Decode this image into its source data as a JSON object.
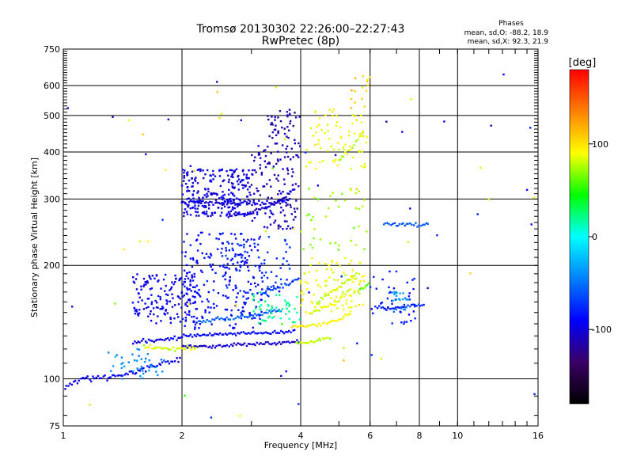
{
  "chart_data": {
    "type": "scatter",
    "title": "Tromsø 20130302 22:26:00–22:27:43",
    "subtitle": "RwPretec (8p)",
    "xlabel": "Frequency [MHz]",
    "ylabel": "Stationary phase Virtual Height [km]",
    "x_scale": "log",
    "y_scale": "log",
    "xlim": [
      1,
      16
    ],
    "ylim": [
      75,
      750
    ],
    "grid": true,
    "x_ticks": [
      1,
      2,
      4,
      6,
      8,
      10,
      16
    ],
    "x_tick_labels": [
      "1",
      "2",
      "4",
      "6",
      "8",
      "10",
      "16"
    ],
    "y_ticks": [
      75,
      100,
      200,
      300,
      400,
      500,
      600,
      750
    ],
    "y_tick_labels": [
      "75",
      "100",
      "200",
      "300",
      "400",
      "500",
      "600",
      "750"
    ],
    "stats": {
      "heading": "Phases",
      "line_o": "mean, sd,O: -88.2, 18.9",
      "line_x": "mean, sd,X:  92.3, 21.9"
    },
    "colorbar": {
      "label": "[deg]",
      "range": [
        -180,
        180
      ],
      "ticks": [
        100,
        0,
        -100
      ],
      "tick_labels": [
        "100",
        "0",
        "-100"
      ],
      "colors": [
        "#000000",
        "#3a0066",
        "#0000ff",
        "#0080ff",
        "#00ffff",
        "#00ff00",
        "#ffff00",
        "#ff8000",
        "#ff0000"
      ]
    },
    "series": [
      {
        "trace": [
          {
            "x": [
              1.0,
              1.05,
              1.12,
              1.25,
              1.4,
              1.55,
              1.65,
              1.8,
              2.0
            ],
            "y": [
              95,
              97,
              100,
              101,
              102,
              105,
              108,
              110,
              113
            ],
            "phase": -95,
            "jitter": 0.03
          },
          {
            "x": [
              1.5,
              1.6,
              1.7,
              1.8,
              1.9,
              2.0
            ],
            "y": [
              125,
              126,
              127,
              127,
              128,
              128
            ],
            "phase": -100,
            "jitter": 0.02
          },
          {
            "x": [
              2.0,
              2.4,
              2.8,
              3.2,
              3.6,
              4.0
            ],
            "y": [
              122,
              122,
              123,
              124,
              124,
              126
            ],
            "phase": -105,
            "jitter": 0.015
          },
          {
            "x": [
              2.0,
              2.4,
              2.8,
              3.2,
              3.6,
              3.9
            ],
            "y": [
              130,
              131,
              132,
              132,
              133,
              134
            ],
            "phase": -90,
            "jitter": 0.015
          },
          {
            "x": [
              2.2,
              2.6,
              3.0,
              3.3,
              3.6
            ],
            "y": [
              142,
              145,
              147,
              150,
              153
            ],
            "phase": -55,
            "jitter": 0.02
          },
          {
            "x": [
              1.6,
              1.8,
              2.0,
              2.2
            ],
            "y": [
              122,
              120,
              120,
              122
            ],
            "phase": 85,
            "jitter": 0.02
          },
          {
            "x": [
              2.0,
              2.4,
              2.8,
              3.2,
              3.6,
              3.8
            ],
            "y": [
              295,
              293,
              292,
              292,
              296,
              300
            ],
            "phase": -100,
            "jitter": 0.02
          },
          {
            "x": [
              2.6,
              3.0,
              3.3,
              3.6,
              3.9
            ],
            "y": [
              270,
              275,
              285,
              300,
              320
            ],
            "phase": -105,
            "jitter": 0.015
          },
          {
            "x": [
              3.2,
              3.5,
              3.8,
              4.0
            ],
            "y": [
              170,
              175,
              180,
              185
            ],
            "phase": -70,
            "jitter": 0.02
          },
          {
            "x": [
              3.8,
              4.1,
              4.4,
              4.7,
              5.0,
              5.4
            ],
            "y": [
              138,
              138,
              139,
              141,
              144,
              150
            ],
            "phase": 95,
            "jitter": 0.015
          },
          {
            "x": [
              4.2,
              4.5,
              4.8,
              5.1,
              5.4
            ],
            "y": [
              150,
              154,
              158,
              165,
              175
            ],
            "phase": 85,
            "jitter": 0.02
          },
          {
            "x": [
              4.4,
              4.7,
              5.0,
              5.3,
              5.6
            ],
            "y": [
              160,
              168,
              175,
              185,
              190
            ],
            "phase": 80,
            "jitter": 0.02
          },
          {
            "x": [
              3.9,
              4.2,
              4.5,
              4.8
            ],
            "y": [
              124,
              125,
              127,
              129
            ],
            "phase": 80,
            "jitter": 0.015
          },
          {
            "x": [
              5.0,
              5.3,
              5.6,
              5.8
            ],
            "y": [
              380,
              400,
              430,
              460
            ],
            "phase": 80,
            "jitter": 0.02
          },
          {
            "x": [
              5.6,
              5.8,
              6.0
            ],
            "y": [
              170,
              175,
              180
            ],
            "phase": 70,
            "jitter": 0.02
          },
          {
            "x": [
              6.5,
              7.0,
              7.5,
              8.0,
              8.5
            ],
            "y": [
              258,
              257,
              257,
              256,
              256
            ],
            "phase": -60,
            "jitter": 0.015
          },
          {
            "x": [
              6.2,
              6.6,
              7.2,
              7.8,
              8.3
            ],
            "y": [
              155,
              154,
              155,
              156,
              157
            ],
            "phase": -80,
            "jitter": 0.015
          }
        ]
      },
      {
        "cloud": [
          {
            "x": [
              1.5,
              2.2
            ],
            "y": [
              140,
              190
            ],
            "n": 150,
            "phase": -95
          },
          {
            "x": [
              2.0,
              3.2
            ],
            "y": [
              135,
              245
            ],
            "n": 240,
            "phase": -90
          },
          {
            "x": [
              2.0,
              3.0
            ],
            "y": [
              270,
              360
            ],
            "n": 250,
            "phase": -100
          },
          {
            "x": [
              3.0,
              4.0
            ],
            "y": [
              250,
              420
            ],
            "n": 130,
            "phase": -110
          },
          {
            "x": [
              3.3,
              4.0
            ],
            "y": [
              420,
              520
            ],
            "n": 45,
            "phase": -115
          },
          {
            "x": [
              2.5,
              3.8
            ],
            "y": [
              160,
              240
            ],
            "n": 70,
            "phase": -75
          },
          {
            "x": [
              4.0,
              5.8
            ],
            "y": [
              150,
              210
            ],
            "n": 100,
            "phase": 90
          },
          {
            "x": [
              4.1,
              5.9
            ],
            "y": [
              360,
              520
            ],
            "n": 70,
            "phase": 90
          },
          {
            "x": [
              4.0,
              5.9
            ],
            "y": [
              220,
              320
            ],
            "n": 40,
            "phase": 70
          },
          {
            "x": [
              5.3,
              6.0
            ],
            "y": [
              520,
              650
            ],
            "n": 15,
            "phase": 110
          },
          {
            "x": [
              6.0,
              8.0
            ],
            "y": [
              140,
              200
            ],
            "n": 40,
            "phase": -85
          },
          {
            "x": [
              6.8,
              7.5
            ],
            "y": [
              150,
              170
            ],
            "n": 25,
            "phase": -40
          },
          {
            "x": [
              1.3,
              1.8
            ],
            "y": [
              100,
              120
            ],
            "n": 40,
            "phase": -40
          },
          {
            "x": [
              3.0,
              4.0
            ],
            "y": [
              140,
              170
            ],
            "n": 50,
            "phase": 20
          },
          {
            "x": [
              1.0,
              16.0
            ],
            "y": [
              75,
              700
            ],
            "n": 70,
            "phase": 60,
            "spread": true
          }
        ]
      }
    ]
  }
}
